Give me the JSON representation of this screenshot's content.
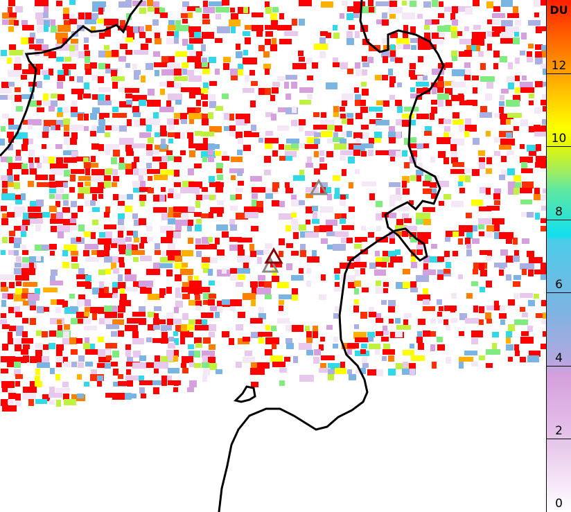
{
  "colorbar": {
    "unit": "DU",
    "min": 0,
    "max": 14,
    "ticks": [
      "0",
      "2",
      "4",
      "6",
      "8",
      "10",
      "12"
    ],
    "colors": [
      "#ffffff",
      "#e8c8ec",
      "#d6a0de",
      "#7ab4e2",
      "#10e0ee",
      "#80ec80",
      "#ffff00",
      "#ff8c00",
      "#ff0000"
    ]
  },
  "markers": [
    {
      "name": "volcano-marker",
      "color": "#888888"
    },
    {
      "name": "volcano-marker-highlight",
      "color": "#8b0000"
    },
    {
      "name": "volcano-marker",
      "color": "#888888"
    }
  ]
}
